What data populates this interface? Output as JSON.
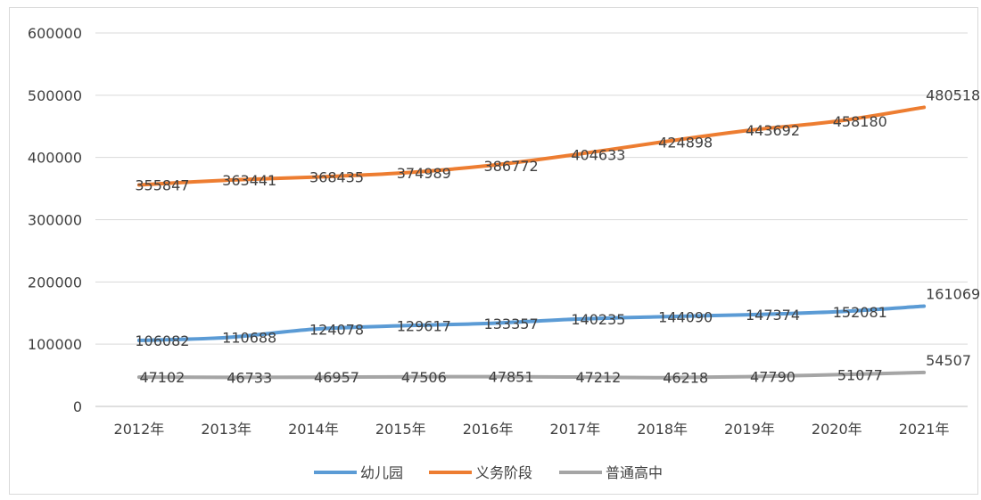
{
  "chart_data": {
    "type": "line",
    "title": "",
    "xlabel": "",
    "ylabel": "",
    "categories": [
      "2012年",
      "2013年",
      "2014年",
      "2015年",
      "2016年",
      "2017年",
      "2018年",
      "2019年",
      "2020年",
      "2021年"
    ],
    "ylim": [
      0,
      600000
    ],
    "yticks": [
      "0",
      "100000",
      "200000",
      "300000",
      "400000",
      "500000",
      "600000"
    ],
    "grid": true,
    "legend_position": "bottom",
    "series": [
      {
        "name": "幼儿园",
        "color": "#5b9bd5",
        "values": [
          106082,
          110688,
          124078,
          129617,
          133357,
          140235,
          144090,
          147374,
          152081,
          161069
        ],
        "labels": [
          "106082",
          "110688",
          "124078",
          "129617",
          "133357",
          "140235",
          "144090",
          "147374",
          "152081",
          "161069"
        ]
      },
      {
        "name": "义务阶段",
        "color": "#ed7d31",
        "values": [
          355847,
          363441,
          368435,
          374989,
          386772,
          404633,
          424898,
          443692,
          458180,
          480518
        ],
        "labels": [
          "355847",
          "363441",
          "368435",
          "374989",
          "386772",
          "404633",
          "424898",
          "443692",
          "458180",
          "480518"
        ]
      },
      {
        "name": "普通高中",
        "color": "#a5a5a5",
        "values": [
          47102,
          46733,
          46957,
          47506,
          47851,
          47212,
          46218,
          47790,
          51077,
          54507
        ],
        "labels": [
          "47102",
          "46733",
          "46957",
          "47506",
          "47851",
          "47212",
          "46218",
          "47790",
          "51077",
          "54507"
        ]
      }
    ]
  }
}
